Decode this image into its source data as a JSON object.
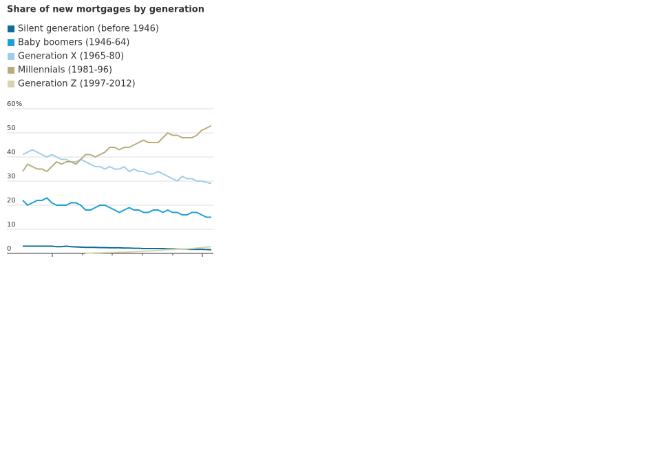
{
  "chart_data": {
    "type": "line",
    "title": "Share of new mortgages by generation",
    "categories": [
      null,
      null,
      null,
      null,
      null,
      null,
      null,
      null,
      null,
      null,
      null,
      null,
      null,
      null,
      null,
      null,
      null,
      null,
      null,
      null,
      null,
      null,
      null,
      null,
      null,
      null,
      null,
      null,
      null,
      null,
      null,
      null,
      null,
      null,
      null,
      null,
      null,
      null,
      null,
      null
    ],
    "series": [
      {
        "name": "Silent generation (before 1946)",
        "color": "#0e6e9a",
        "values": [
          3,
          3,
          3,
          3,
          3,
          3,
          3,
          2.8,
          2.8,
          3,
          2.8,
          2.7,
          2.6,
          2.5,
          2.5,
          2.5,
          2.4,
          2.4,
          2.3,
          2.3,
          2.3,
          2.2,
          2.2,
          2.1,
          2.1,
          2,
          2,
          2,
          2,
          2,
          1.9,
          1.9,
          1.8,
          1.8,
          1.8,
          1.7,
          1.7,
          1.7,
          1.6,
          1.5
        ]
      },
      {
        "name": "Baby boomers (1946-64)",
        "color": "#1a9fd6",
        "values": [
          22,
          20,
          21,
          22,
          22,
          23,
          21,
          20,
          20,
          20,
          21,
          21,
          20,
          18,
          18,
          19,
          20,
          20,
          19,
          18,
          17,
          18,
          19,
          18,
          18,
          17,
          17,
          18,
          18,
          17,
          18,
          17,
          17,
          16,
          16,
          17,
          17,
          16,
          15,
          15
        ]
      },
      {
        "name": "Generation X (1965-80)",
        "color": "#9fcde8",
        "values": [
          41,
          42,
          43,
          42,
          41,
          40,
          41,
          40,
          39,
          39,
          38,
          38,
          39,
          38,
          37,
          36,
          36,
          35,
          36,
          35,
          35,
          36,
          34,
          35,
          34,
          34,
          33,
          33,
          34,
          33,
          32,
          31,
          30,
          32,
          31,
          31,
          30,
          30,
          29.5,
          29
        ]
      },
      {
        "name": "Millennials (1981-96)",
        "color": "#b8ad7a",
        "values": [
          34,
          37,
          36,
          35,
          35,
          34,
          36,
          38,
          37,
          38,
          38,
          37,
          39,
          41,
          41,
          40,
          41,
          42,
          44,
          44,
          43,
          44,
          44,
          45,
          46,
          47,
          46,
          46,
          46,
          48,
          50,
          49,
          49,
          48,
          48,
          48,
          49,
          51,
          52,
          53
        ]
      },
      {
        "name": "Generation Z (1997-2012)",
        "color": "#d9d4b0",
        "values": [
          null,
          null,
          null,
          null,
          null,
          null,
          null,
          null,
          null,
          null,
          null,
          null,
          null,
          0.1,
          0.1,
          0.2,
          0.2,
          0.3,
          0.3,
          0.4,
          0.5,
          0.5,
          0.6,
          0.7,
          0.8,
          0.9,
          1,
          1.1,
          1.2,
          1.4,
          1.5,
          1.6,
          1.7,
          1.8,
          1.9,
          2,
          2.2,
          2.4,
          2.6,
          2.8
        ]
      }
    ],
    "ylim": [
      0,
      60
    ],
    "yticks": [
      0,
      10,
      20,
      30,
      40,
      50,
      {
        "value": 60,
        "label": "60%"
      }
    ],
    "grid": true
  }
}
